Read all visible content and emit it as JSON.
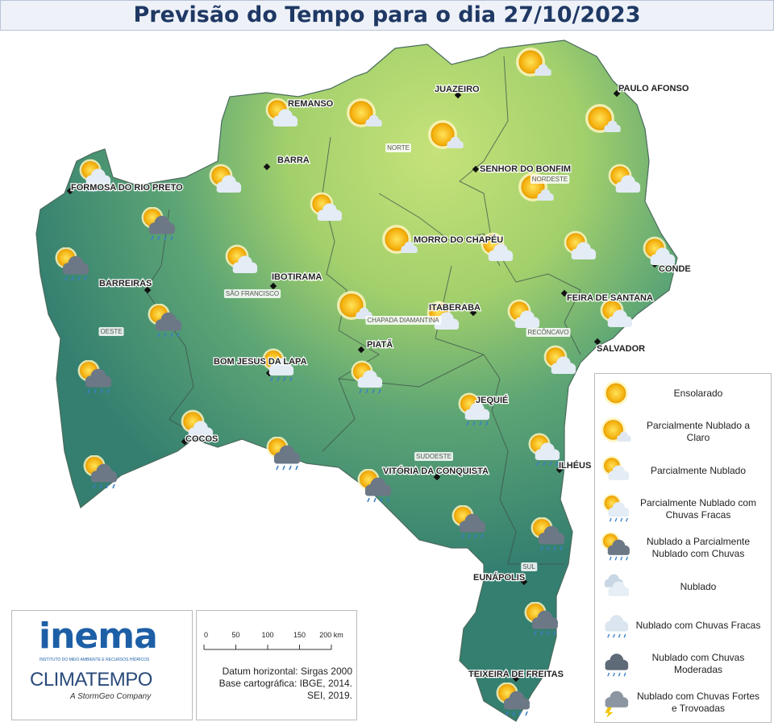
{
  "title": "Previsão do Tempo para o dia 27/10/2023",
  "cities": [
    "REMANSO",
    "JUAZEIRO",
    "PAULO AFONSO",
    "BARRA",
    "SENHOR DO BONFIM",
    "FORMOSA DO RIO PRETO",
    "MORRO DO CHAPÉU",
    "CONDE",
    "IBOTIRAMA",
    "BARREIRAS",
    "FEIRA DE SANTANA",
    "ITABERABA",
    "SALVADOR",
    "PIATÃ",
    "BOM JESUS DA LAPA",
    "JEQUIÉ",
    "COCOS",
    "VITÓRIA DA CONQUISTA",
    "ILHÉUS",
    "EUNÁPOLIS",
    "TEIXEIRA DE FREITAS"
  ],
  "regions": [
    "NORTE",
    "NORDESTE",
    "SÃO FRANCISCO",
    "CHAPADA DIAMANTINA",
    "RECÔNCAVO",
    "OESTE",
    "SUDOESTE",
    "SUL"
  ],
  "legend": [
    "Ensolarado",
    "Parcialmente Nublado a Claro",
    "Parcialmente Nublado",
    "Parcialmente Nublado com Chuvas Fracas",
    "Nublado a Parcialmente Nublado com Chuvas",
    "Nublado",
    "Nublado com Chuvas Fracas",
    "Nublado com Chuvas Moderadas",
    "Nublado com Chuvas Fortes e Trovoadas"
  ],
  "logos": {
    "inema": "inema",
    "inema_sub": "INSTITUTO DO MEIO AMBIENTE E RECURSOS HÍDRICOS",
    "climatempo": "CLIMATEMPO",
    "climatempo_sub": "A StormGeo Company"
  },
  "scale": {
    "labels": [
      "0",
      "50",
      "100",
      "150",
      "200 km"
    ],
    "notes": [
      "Datum horizontal: Sirgas 2000",
      "Base cartográfica: IBGE, 2014.",
      "SEI, 2019."
    ]
  }
}
